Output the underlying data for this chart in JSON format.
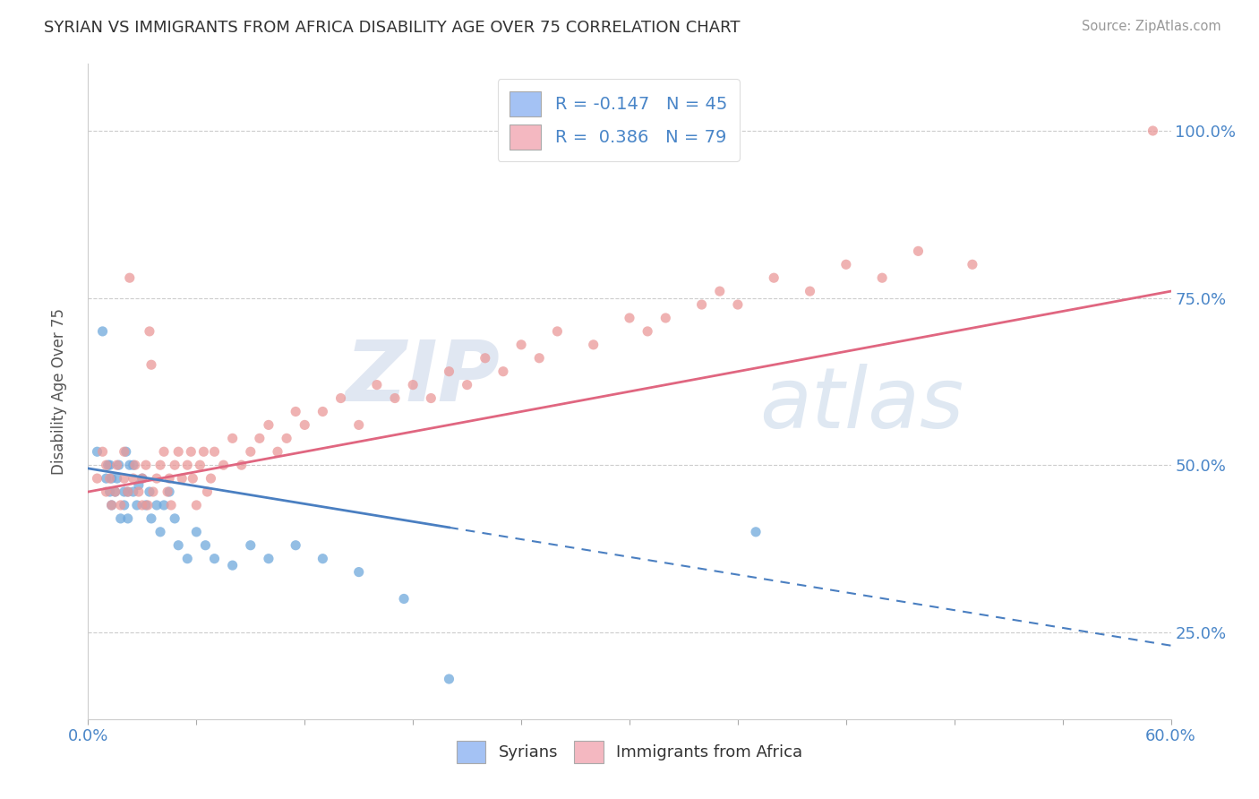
{
  "title": "SYRIAN VS IMMIGRANTS FROM AFRICA DISABILITY AGE OVER 75 CORRELATION CHART",
  "source": "Source: ZipAtlas.com",
  "ylabel": "Disability Age Over 75",
  "y_tick_labels": [
    "25.0%",
    "50.0%",
    "75.0%",
    "100.0%"
  ],
  "y_tick_values": [
    0.25,
    0.5,
    0.75,
    1.0
  ],
  "x_range": [
    0.0,
    0.6
  ],
  "y_range": [
    0.12,
    1.1
  ],
  "syrians_R": -0.147,
  "syrians_N": 45,
  "africa_R": 0.386,
  "africa_N": 79,
  "blue_color": "#6fa8dc",
  "pink_color": "#ea9999",
  "blue_line_color": "#4a7fc1",
  "pink_line_color": "#e06680",
  "blue_fill": "#a4c2f4",
  "pink_fill": "#f4b8c1",
  "watermark_zip": "ZIP",
  "watermark_atlas": "atlas",
  "syrians_x": [
    0.005,
    0.008,
    0.01,
    0.011,
    0.012,
    0.012,
    0.013,
    0.013,
    0.015,
    0.016,
    0.017,
    0.018,
    0.02,
    0.02,
    0.021,
    0.022,
    0.022,
    0.023,
    0.025,
    0.025,
    0.027,
    0.028,
    0.03,
    0.032,
    0.034,
    0.035,
    0.038,
    0.04,
    0.042,
    0.045,
    0.048,
    0.05,
    0.055,
    0.06,
    0.065,
    0.07,
    0.08,
    0.09,
    0.1,
    0.115,
    0.13,
    0.15,
    0.175,
    0.2,
    0.37
  ],
  "syrians_y": [
    0.52,
    0.7,
    0.48,
    0.5,
    0.46,
    0.5,
    0.44,
    0.48,
    0.46,
    0.48,
    0.5,
    0.42,
    0.44,
    0.46,
    0.52,
    0.42,
    0.46,
    0.5,
    0.46,
    0.5,
    0.44,
    0.47,
    0.48,
    0.44,
    0.46,
    0.42,
    0.44,
    0.4,
    0.44,
    0.46,
    0.42,
    0.38,
    0.36,
    0.4,
    0.38,
    0.36,
    0.35,
    0.38,
    0.36,
    0.38,
    0.36,
    0.34,
    0.3,
    0.18,
    0.4
  ],
  "africa_x": [
    0.005,
    0.008,
    0.01,
    0.01,
    0.012,
    0.013,
    0.015,
    0.016,
    0.018,
    0.02,
    0.02,
    0.022,
    0.023,
    0.025,
    0.026,
    0.028,
    0.03,
    0.03,
    0.032,
    0.033,
    0.034,
    0.035,
    0.036,
    0.038,
    0.04,
    0.042,
    0.044,
    0.045,
    0.046,
    0.048,
    0.05,
    0.052,
    0.055,
    0.057,
    0.058,
    0.06,
    0.062,
    0.064,
    0.066,
    0.068,
    0.07,
    0.075,
    0.08,
    0.085,
    0.09,
    0.095,
    0.1,
    0.105,
    0.11,
    0.115,
    0.12,
    0.13,
    0.14,
    0.15,
    0.16,
    0.17,
    0.18,
    0.19,
    0.2,
    0.21,
    0.22,
    0.23,
    0.24,
    0.25,
    0.26,
    0.28,
    0.3,
    0.31,
    0.32,
    0.34,
    0.35,
    0.36,
    0.38,
    0.4,
    0.42,
    0.44,
    0.46,
    0.49,
    0.59
  ],
  "africa_y": [
    0.48,
    0.52,
    0.5,
    0.46,
    0.48,
    0.44,
    0.46,
    0.5,
    0.44,
    0.48,
    0.52,
    0.46,
    0.78,
    0.48,
    0.5,
    0.46,
    0.44,
    0.48,
    0.5,
    0.44,
    0.7,
    0.65,
    0.46,
    0.48,
    0.5,
    0.52,
    0.46,
    0.48,
    0.44,
    0.5,
    0.52,
    0.48,
    0.5,
    0.52,
    0.48,
    0.44,
    0.5,
    0.52,
    0.46,
    0.48,
    0.52,
    0.5,
    0.54,
    0.5,
    0.52,
    0.54,
    0.56,
    0.52,
    0.54,
    0.58,
    0.56,
    0.58,
    0.6,
    0.56,
    0.62,
    0.6,
    0.62,
    0.6,
    0.64,
    0.62,
    0.66,
    0.64,
    0.68,
    0.66,
    0.7,
    0.68,
    0.72,
    0.7,
    0.72,
    0.74,
    0.76,
    0.74,
    0.78,
    0.76,
    0.8,
    0.78,
    0.82,
    0.8,
    1.0
  ],
  "trend_blue_x0": 0.0,
  "trend_blue_y0": 0.495,
  "trend_blue_x1": 0.6,
  "trend_blue_y1": 0.23,
  "trend_blue_solid_end": 0.2,
  "trend_pink_x0": 0.0,
  "trend_pink_y0": 0.46,
  "trend_pink_x1": 0.6,
  "trend_pink_y1": 0.76
}
